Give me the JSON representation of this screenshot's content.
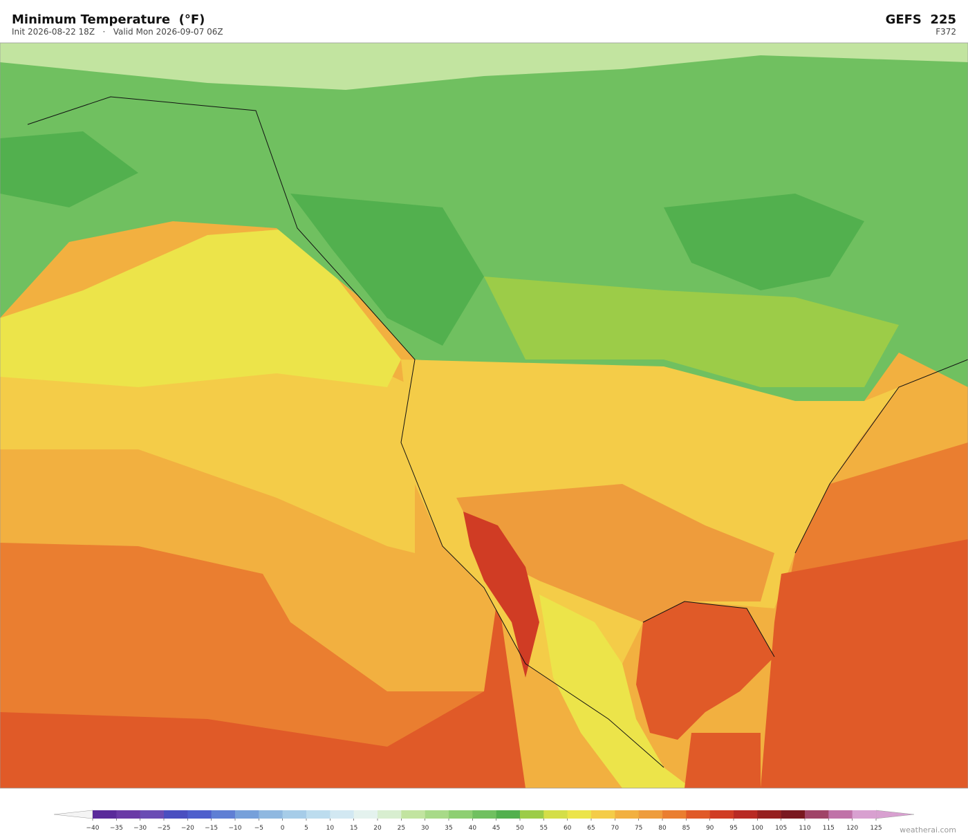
{
  "header": {
    "title": "Minimum Temperature  (°F)",
    "subtitle": "Init 2026-08-22 18Z   ·   Valid Mon 2026-09-07 06Z",
    "model": "GEFS  225",
    "forecast_hour": "F372"
  },
  "colorbar": {
    "ticks": [
      {
        "value": -40,
        "label": "−40"
      },
      {
        "value": -35,
        "label": "−35"
      },
      {
        "value": -30,
        "label": "−30"
      },
      {
        "value": -25,
        "label": "−25"
      },
      {
        "value": -20,
        "label": "−20"
      },
      {
        "value": -15,
        "label": "−15"
      },
      {
        "value": -10,
        "label": "−10"
      },
      {
        "value": -5,
        "label": "−5"
      },
      0,
      5,
      10,
      15,
      20,
      25,
      30,
      35,
      40,
      45,
      50,
      55,
      60,
      65,
      70,
      75,
      80,
      85,
      90,
      95,
      100,
      105,
      110,
      115,
      120,
      125
    ],
    "colors": [
      "#5a2a9a",
      "#6a3aa6",
      "#6a4cb4",
      "#4a4fc0",
      "#4e5fcc",
      "#5f7fd4",
      "#76a0da",
      "#8fb8e0",
      "#a6cce8",
      "#bcdcee",
      "#d2e8f2",
      "#e4f2ee",
      "#d8eed0",
      "#c2e4a0",
      "#a8da88",
      "#8ecf72",
      "#70c060",
      "#52b04e",
      "#9ccc48",
      "#d4de48",
      "#ece44a",
      "#f4cc48",
      "#f2b040",
      "#ee9c3c",
      "#ea7e30",
      "#e05a28",
      "#d03c24",
      "#b82a24",
      "#962020",
      "#7a1820",
      "#a04468",
      "#c072a8",
      "#d8a0d0"
    ]
  },
  "footer": {
    "credit": "weatherai.com"
  }
}
